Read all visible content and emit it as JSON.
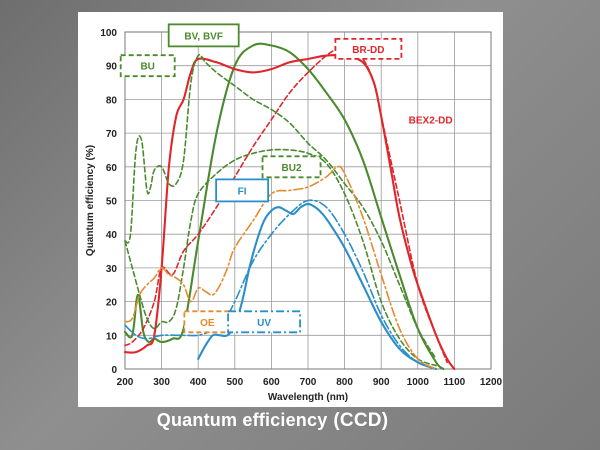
{
  "caption": {
    "main": "Quantum efficiency",
    "suffix": "(CCD)"
  },
  "colors": {
    "green": "#4b8a2f",
    "red": "#e0262b",
    "blue": "#2a8fc9",
    "orange": "#e48b2e",
    "grid": "#9a9a9a",
    "panel": "#ffffff"
  },
  "chart_data": {
    "type": "line",
    "xlabel": "Wavelength (nm)",
    "ylabel": "Quantum efficiency (%)",
    "xlim": [
      200,
      1200
    ],
    "ylim": [
      0,
      100
    ],
    "xticks": [
      "200",
      "300",
      "400",
      "500",
      "600",
      "700",
      "800",
      "900",
      "1000",
      "1100",
      "1200"
    ],
    "yticks": [
      "0",
      "10",
      "20",
      "30",
      "40",
      "50",
      "60",
      "70",
      "80",
      "90",
      "100"
    ],
    "grid": true,
    "series": [
      {
        "name": "BV, BVF",
        "color": "#4b8a2f",
        "dash": "solid",
        "label_color": "#4b8a2f",
        "x": [
          200,
          220,
          235,
          250,
          265,
          280,
          300,
          330,
          360,
          400,
          450,
          500,
          550,
          600,
          650,
          700,
          750,
          800,
          850,
          900,
          950,
          1000,
          1050,
          1070
        ],
        "y": [
          11,
          10,
          22,
          11,
          8,
          9,
          8,
          9,
          12,
          38,
          70,
          90,
          96,
          96,
          94,
          89,
          82,
          74,
          62,
          45,
          28,
          12,
          2,
          0
        ]
      },
      {
        "name": "BEX2-DD",
        "color": "#e0262b",
        "dash": "solid",
        "label_color": "#e0262b",
        "x": [
          200,
          230,
          260,
          280,
          300,
          320,
          340,
          360,
          380,
          400,
          450,
          500,
          550,
          600,
          650,
          700,
          750,
          800,
          850,
          880,
          900,
          930,
          950,
          980,
          1000,
          1050,
          1080,
          1100
        ],
        "y": [
          5,
          5,
          7,
          10,
          30,
          60,
          75,
          80,
          88,
          92,
          91,
          89,
          88,
          89,
          91,
          92,
          93,
          93,
          91,
          85,
          75,
          57,
          45,
          32,
          25,
          10,
          3,
          0
        ]
      },
      {
        "name": "BR-DD",
        "color": "#e0262b",
        "dash": "dashed",
        "label_color": "#e0262b",
        "x": [
          200,
          220,
          250,
          280,
          300,
          330,
          360,
          400,
          450,
          500,
          550,
          600,
          650,
          700,
          750,
          780,
          800,
          820,
          850,
          880,
          900,
          950,
          1000,
          1050,
          1080
        ],
        "y": [
          7,
          8,
          12,
          20,
          30,
          28,
          35,
          40,
          48,
          57,
          66,
          74,
          82,
          88,
          93,
          95,
          95,
          94,
          92,
          85,
          75,
          50,
          25,
          10,
          2
        ]
      },
      {
        "name": "BU",
        "color": "#4b8a2f",
        "dash": "dashed",
        "label_color": "#4b8a2f",
        "x": [
          200,
          215,
          230,
          245,
          260,
          270,
          280,
          300,
          320,
          340,
          360,
          380,
          400,
          420,
          450,
          500,
          550,
          600,
          650,
          700,
          750,
          800,
          850,
          900,
          950,
          1000,
          1050
        ],
        "y": [
          38,
          40,
          65,
          68,
          53,
          54,
          59,
          60,
          55,
          55,
          62,
          85,
          93,
          91,
          88,
          84,
          80,
          77,
          73,
          67,
          62,
          55,
          48,
          38,
          25,
          12,
          3
        ]
      },
      {
        "name": "BU2",
        "color": "#4b8a2f",
        "dash": "dashed",
        "label_color": "#4b8a2f",
        "x": [
          200,
          220,
          240,
          260,
          280,
          300,
          320,
          340,
          360,
          380,
          400,
          450,
          500,
          550,
          600,
          650,
          700,
          750,
          800,
          850,
          900,
          950,
          1000,
          1050
        ],
        "y": [
          38,
          30,
          22,
          15,
          12,
          14,
          14,
          18,
          30,
          44,
          52,
          58,
          62,
          64,
          65,
          65,
          64,
          61,
          52,
          38,
          20,
          9,
          3,
          1
        ]
      },
      {
        "name": "FI",
        "color": "#2a8fc9",
        "dash": "solid",
        "label_color": "#2a8fc9",
        "x": [
          400,
          420,
          440,
          460,
          480,
          500,
          520,
          540,
          560,
          580,
          600,
          620,
          640,
          660,
          680,
          700,
          720,
          740,
          760,
          800,
          850,
          900,
          950,
          1000,
          1050
        ],
        "y": [
          3,
          7,
          10,
          10,
          10,
          13,
          20,
          30,
          38,
          44,
          47,
          48,
          47,
          46,
          48,
          49,
          48,
          46,
          43,
          36,
          25,
          14,
          6,
          2,
          0
        ]
      },
      {
        "name": "UV",
        "color": "#2a8fc9",
        "dash": "dashdot",
        "label_color": "#2a8fc9",
        "x": [
          200,
          230,
          260,
          300,
          350,
          400,
          430,
          460,
          500,
          550,
          600,
          650,
          700,
          750,
          800,
          850,
          900,
          950,
          1000,
          1050
        ],
        "y": [
          13,
          10,
          9,
          10,
          10,
          10,
          11,
          12,
          20,
          32,
          40,
          46,
          50,
          48,
          40,
          29,
          16,
          7,
          2,
          0
        ]
      },
      {
        "name": "OE",
        "color": "#e48b2e",
        "dash": "dashdot",
        "label_color": "#e48b2e",
        "x": [
          200,
          220,
          240,
          260,
          280,
          300,
          320,
          340,
          360,
          380,
          400,
          420,
          440,
          460,
          480,
          500,
          550,
          600,
          650,
          700,
          750,
          780,
          800,
          850,
          900,
          950,
          1000,
          1050
        ],
        "y": [
          14,
          15,
          22,
          25,
          27,
          30,
          28,
          27,
          25,
          20,
          24,
          23,
          22,
          25,
          30,
          36,
          44,
          52,
          53,
          54,
          57,
          60,
          58,
          45,
          28,
          12,
          3,
          0
        ]
      }
    ],
    "legend": [
      {
        "text": "BV, BVF",
        "color": "#4b8a2f",
        "box": "solid"
      },
      {
        "text": "BU",
        "color": "#4b8a2f",
        "box": "dashed"
      },
      {
        "text": "BR-DD",
        "color": "#e0262b",
        "box": "dashed"
      },
      {
        "text": "BEX2-DD",
        "color": "#e0262b",
        "box": "none"
      },
      {
        "text": "BU2",
        "color": "#4b8a2f",
        "box": "dashed"
      },
      {
        "text": "FI",
        "color": "#2a8fc9",
        "box": "solid"
      },
      {
        "text": "OE",
        "color": "#e48b2e",
        "box": "dashed"
      },
      {
        "text": "UV",
        "color": "#2a8fc9",
        "box": "dashdot"
      }
    ]
  }
}
